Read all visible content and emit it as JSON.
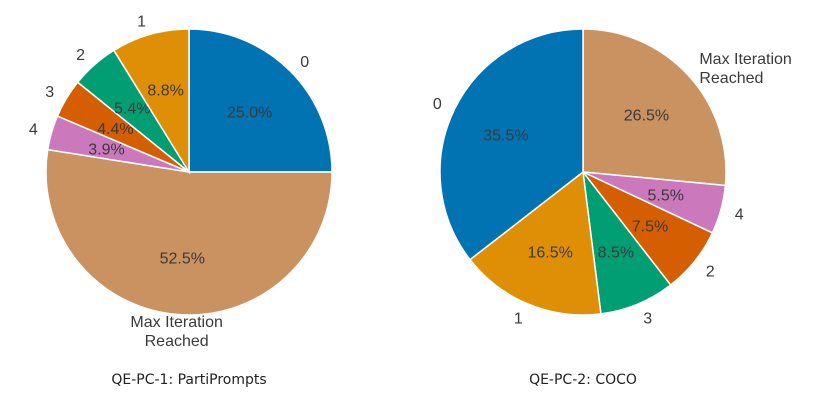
{
  "chart_data": [
    {
      "type": "pie",
      "caption": "QE-PC-1: PartiPrompts",
      "slices": [
        {
          "label": "0",
          "value": 25.0,
          "pct_text": "25.0%",
          "color": "#0173b2"
        },
        {
          "label": "Max Iteration Reached",
          "value": 52.5,
          "pct_text": "52.5%",
          "color": "#ca9161"
        },
        {
          "label": "4",
          "value": 3.9,
          "pct_text": "3.9%",
          "color": "#cc78bc"
        },
        {
          "label": "3",
          "value": 4.4,
          "pct_text": "4.4%",
          "color": "#d55e00"
        },
        {
          "label": "2",
          "value": 5.4,
          "pct_text": "5.4%",
          "color": "#029e73"
        },
        {
          "label": "1",
          "value": 8.8,
          "pct_text": "8.8%",
          "color": "#de8f05"
        }
      ]
    },
    {
      "type": "pie",
      "caption": "QE-PC-2: COCO",
      "slices": [
        {
          "label": "Max Iteration Reached",
          "value": 26.5,
          "pct_text": "26.5%",
          "color": "#ca9161"
        },
        {
          "label": "4",
          "value": 5.5,
          "pct_text": "5.5%",
          "color": "#cc78bc"
        },
        {
          "label": "2",
          "value": 7.5,
          "pct_text": "7.5%",
          "color": "#d55e00"
        },
        {
          "label": "3",
          "value": 8.5,
          "pct_text": "8.5%",
          "color": "#029e73"
        },
        {
          "label": "1",
          "value": 16.5,
          "pct_text": "16.5%",
          "color": "#de8f05"
        },
        {
          "label": "0",
          "value": 35.5,
          "pct_text": "35.5%",
          "color": "#0173b2"
        }
      ]
    }
  ]
}
